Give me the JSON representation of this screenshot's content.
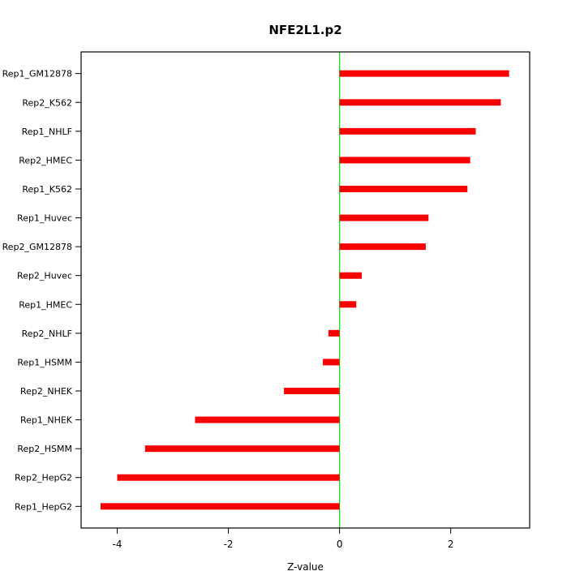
{
  "chart_data": {
    "type": "bar",
    "orientation": "horizontal",
    "title": "NFE2L1.p2",
    "xlabel": "Z-value",
    "ylabel": "",
    "categories": [
      "Rep1_GM12878",
      "Rep2_K562",
      "Rep1_NHLF",
      "Rep2_HMEC",
      "Rep1_K562",
      "Rep1_Huvec",
      "Rep2_GM12878",
      "Rep2_Huvec",
      "Rep1_HMEC",
      "Rep2_NHLF",
      "Rep1_HSMM",
      "Rep2_NHEK",
      "Rep1_NHEK",
      "Rep2_HSMM",
      "Rep2_HepG2",
      "Rep1_HepG2"
    ],
    "values": [
      3.05,
      2.9,
      2.45,
      2.35,
      2.3,
      1.6,
      1.55,
      0.4,
      0.3,
      -0.2,
      -0.3,
      -1.0,
      -2.6,
      -3.5,
      -4.0,
      -4.3
    ],
    "xlim": [
      -4.65,
      3.42
    ],
    "xticks": [
      -4,
      -2,
      0,
      2
    ],
    "bar_color": "#ff0000",
    "bar_dot_color": "#d40000",
    "zero_line_color": "#00e000",
    "axis_color": "#000000",
    "grid": false,
    "legend": false
  }
}
